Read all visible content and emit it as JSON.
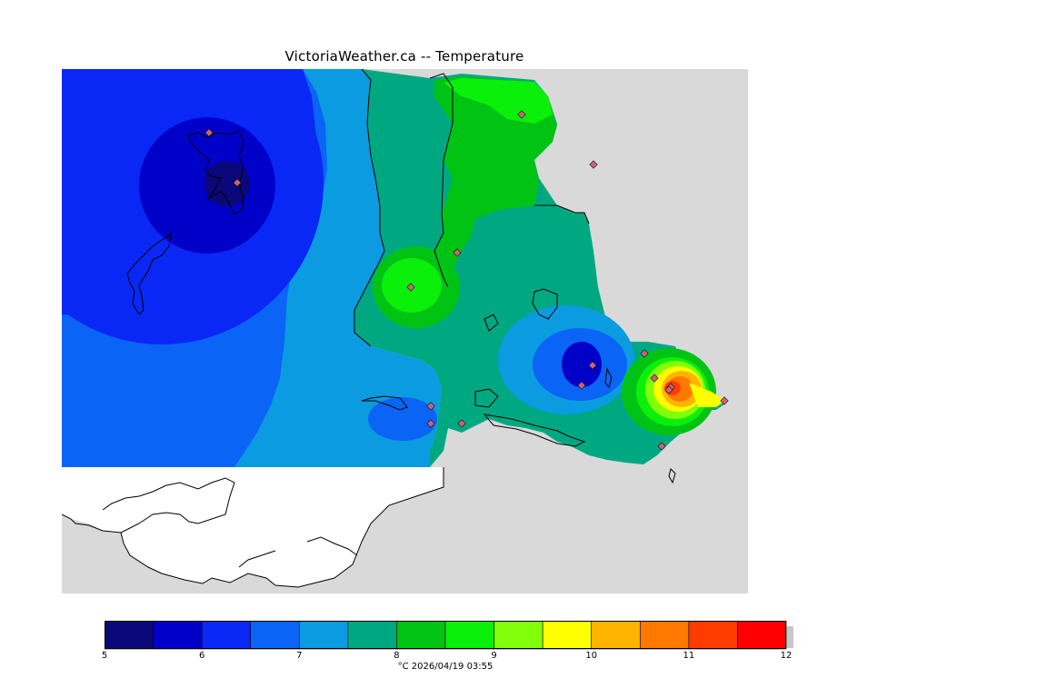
{
  "title": "VictoriaWeather.ca -- Temperature",
  "legend": {
    "units_time": "°C  2026/04/19 03:55",
    "ticks": [
      "5",
      "6",
      "7",
      "8",
      "9",
      "10",
      "11",
      "12"
    ],
    "bins": [
      {
        "from": 5.0,
        "to": 5.5,
        "color": "#0a0878"
      },
      {
        "from": 5.5,
        "to": 6.0,
        "color": "#0000c8"
      },
      {
        "from": 6.0,
        "to": 6.5,
        "color": "#0a28f5"
      },
      {
        "from": 6.5,
        "to": 7.0,
        "color": "#0a64f5"
      },
      {
        "from": 7.0,
        "to": 7.5,
        "color": "#0a9be1"
      },
      {
        "from": 7.5,
        "to": 8.0,
        "color": "#00a882"
      },
      {
        "from": 8.0,
        "to": 8.5,
        "color": "#00c314"
      },
      {
        "from": 8.5,
        "to": 9.0,
        "color": "#0af00a"
      },
      {
        "from": 9.0,
        "to": 9.5,
        "color": "#82ff0a"
      },
      {
        "from": 9.5,
        "to": 10.0,
        "color": "#ffff00"
      },
      {
        "from": 10.0,
        "to": 10.5,
        "color": "#ffb400"
      },
      {
        "from": 10.5,
        "to": 11.0,
        "color": "#ff7800"
      },
      {
        "from": 11.0,
        "to": 11.5,
        "color": "#ff3c00"
      },
      {
        "from": 11.5,
        "to": 12.0,
        "color": "#ff0000"
      }
    ]
  },
  "colors": {
    "land_background": "#d9d9d9",
    "no_data": "#ffffff",
    "station_marker": "#c86478",
    "coastline": "#000000"
  },
  "stations": [
    {
      "temp": 5.7
    },
    {
      "temp": 5.3
    },
    {
      "temp": 8.6
    },
    {
      "temp": 8.8
    },
    {
      "temp": 7.8
    },
    {
      "temp": 6.1
    },
    {
      "temp": 6.2
    },
    {
      "temp": 6.3
    },
    {
      "temp": 8.2
    },
    {
      "temp": 6.7
    },
    {
      "temp": 6.3
    },
    {
      "temp": 6.2
    },
    {
      "temp": 10.2
    },
    {
      "temp": 11.6
    },
    {
      "temp": 11.2
    },
    {
      "temp": 10.8
    },
    {
      "temp": 7.3
    }
  ]
}
